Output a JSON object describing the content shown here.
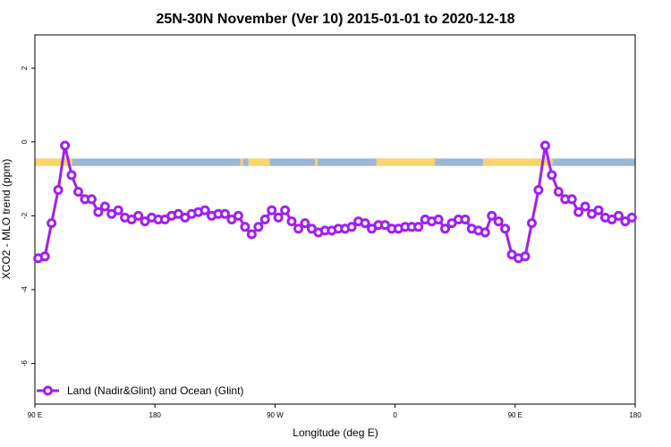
{
  "chart_data": {
    "type": "line",
    "title": "25N-30N November (Ver 10)   2015-01-01 to 2020-12-18",
    "xlabel": "Longitude (deg E)",
    "ylabel": "XCO2 - MLO trend (ppm)",
    "xlim": [
      90,
      540
    ],
    "ylim": [
      -7.1,
      2.9
    ],
    "x_ticks": [
      {
        "value": 90,
        "label": "90 E"
      },
      {
        "value": 180,
        "label": "180"
      },
      {
        "value": 270,
        "label": "90 W"
      },
      {
        "value": 360,
        "label": "0"
      },
      {
        "value": 450,
        "label": "90 E"
      },
      {
        "value": 540,
        "label": "180"
      }
    ],
    "y_ticks": [
      {
        "value": 2,
        "label": "2"
      },
      {
        "value": 0,
        "label": "0"
      },
      {
        "value": -2,
        "label": "-2"
      },
      {
        "value": -4,
        "label": "-4"
      },
      {
        "value": -6,
        "label": "-6"
      }
    ],
    "land_sea_band": {
      "y_range": [
        -0.65,
        -0.45
      ],
      "land_color": "#f9d56e",
      "ocean_color": "#9eb6d6",
      "land_x_ranges": [
        [
          90,
          118
        ],
        [
          244,
          246
        ],
        [
          250,
          266
        ],
        [
          300,
          302
        ],
        [
          346,
          390
        ],
        [
          426,
          478
        ]
      ]
    },
    "legend": {
      "position": "bottom-left",
      "label": "Land (Nadir&Glint) and Ocean (Glint)"
    },
    "series": [
      {
        "name": "Land (Nadir&Glint) and Ocean (Glint)",
        "color": "#a020f0",
        "x": [
          92.5,
          97.5,
          102.5,
          107.5,
          112.5,
          117.5,
          122.5,
          127.5,
          132.5,
          137.5,
          142.5,
          147.5,
          152.5,
          157.5,
          162.5,
          167.5,
          172.5,
          177.5,
          182.5,
          187.5,
          192.5,
          197.5,
          202.5,
          207.5,
          212.5,
          217.5,
          222.5,
          227.5,
          232.5,
          237.5,
          242.5,
          247.5,
          252.5,
          257.5,
          262.5,
          267.5,
          272.5,
          277.5,
          282.5,
          287.5,
          292.5,
          297.5,
          302.5,
          307.5,
          312.5,
          317.5,
          322.5,
          327.5,
          332.5,
          337.5,
          342.5,
          347.5,
          352.5,
          357.5,
          362.5,
          367.5,
          372.5,
          377.5,
          382.5,
          387.5,
          392.5,
          397.5,
          402.5,
          407.5,
          412.5,
          417.5,
          422.5,
          427.5,
          432.5,
          437.5,
          442.5,
          447.5,
          452.5,
          457.5,
          462.5,
          467.5,
          472.5,
          477.5,
          482.5,
          487.5,
          492.5,
          497.5,
          502.5,
          507.5,
          512.5,
          517.5,
          522.5,
          527.5,
          532.5,
          537.5
        ],
        "values": [
          -3.15,
          -3.1,
          -2.2,
          -1.3,
          -0.1,
          -0.9,
          -1.35,
          -1.55,
          -1.55,
          -1.9,
          -1.75,
          -1.95,
          -1.85,
          -2.05,
          -2.1,
          -2.0,
          -2.15,
          -2.05,
          -2.1,
          -2.1,
          -2.0,
          -1.95,
          -2.05,
          -1.95,
          -1.9,
          -1.85,
          -2.0,
          -1.95,
          -1.95,
          -2.1,
          -2.0,
          -2.3,
          -2.5,
          -2.3,
          -2.1,
          -1.85,
          -2.05,
          -1.85,
          -2.15,
          -2.35,
          -2.2,
          -2.35,
          -2.45,
          -2.4,
          -2.4,
          -2.35,
          -2.35,
          -2.3,
          -2.15,
          -2.2,
          -2.35,
          -2.25,
          -2.25,
          -2.35,
          -2.35,
          -2.3,
          -2.3,
          -2.3,
          -2.1,
          -2.15,
          -2.1,
          -2.35,
          -2.2,
          -2.1,
          -2.1,
          -2.35,
          -2.4,
          -2.45,
          -2.0,
          -2.15,
          -2.35,
          -3.05,
          -3.15,
          -3.1,
          -2.2,
          -1.3,
          -0.1,
          -0.9,
          -1.35,
          -1.55,
          -1.55,
          -1.9,
          -1.75,
          -1.95,
          -1.85,
          -2.05,
          -2.1,
          -2.0,
          -2.15,
          -2.05
        ]
      }
    ]
  }
}
